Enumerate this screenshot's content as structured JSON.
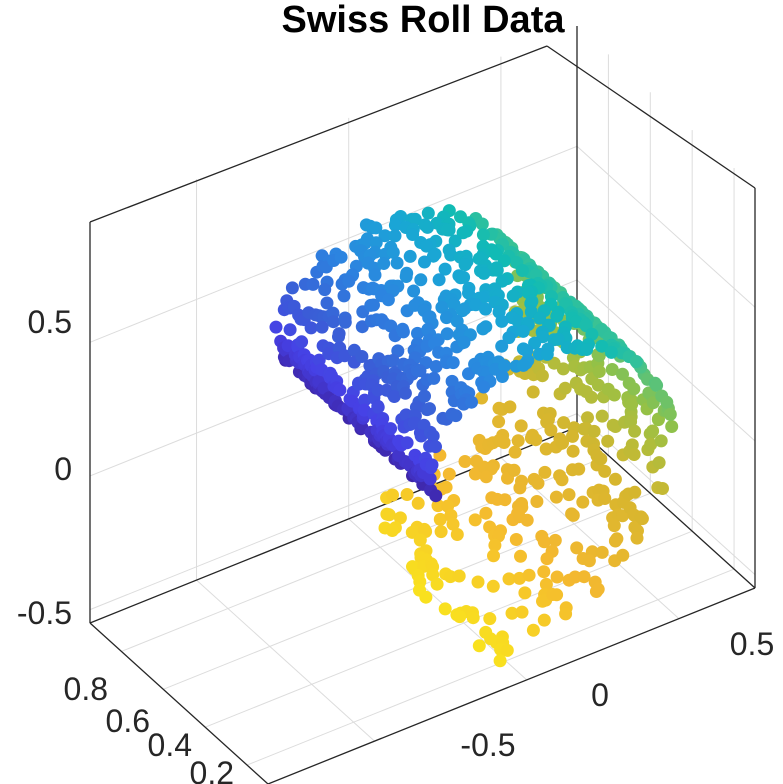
{
  "chart_data": {
    "type": "scatter3d",
    "title": "Swiss Roll Data",
    "xlabel": "",
    "ylabel": "",
    "zlabel": "",
    "x_ticks": [
      "-0.5",
      "0",
      "0.5"
    ],
    "y_ticks": [
      "0.2",
      "0.4",
      "0.6",
      "0.8"
    ],
    "z_ticks": [
      "-0.5",
      "0",
      "0.5"
    ],
    "xlim": [
      -0.85,
      0.75
    ],
    "ylim": [
      0.1,
      0.95
    ],
    "zlim": [
      -0.55,
      0.95
    ],
    "grid": true,
    "colormap": "parula",
    "color_by": "roll-angle",
    "roll": {
      "angle_range": [
        4.7,
        9.4
      ],
      "radius_range": [
        0.11,
        0.85
      ],
      "point_count": 1000,
      "depth_range": [
        0.15,
        0.9
      ]
    },
    "marker_color_stops": [
      "#3e26a8",
      "#4641e6",
      "#3a5fd6",
      "#2c84e0",
      "#1aa5d6",
      "#10bbb5",
      "#3fc390",
      "#95c146",
      "#d6b62e",
      "#f4b830",
      "#f9e21e"
    ]
  }
}
